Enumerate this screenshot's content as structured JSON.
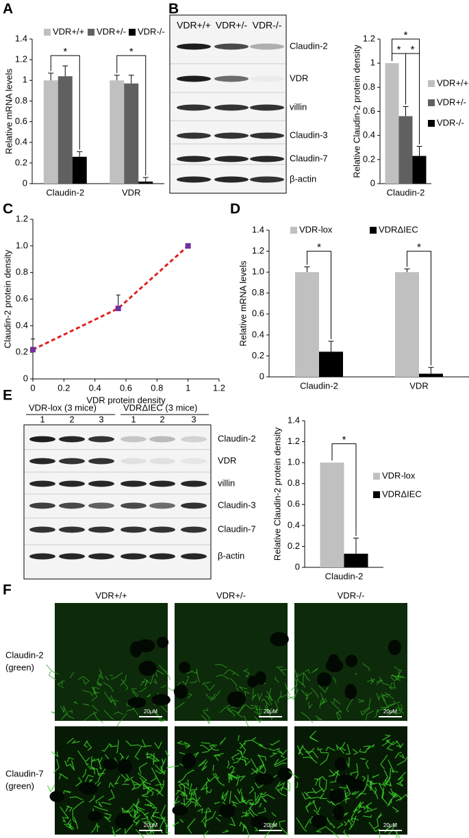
{
  "panels": [
    "A",
    "B",
    "C",
    "D",
    "E",
    "F"
  ],
  "chart_data": [
    {
      "type": "bar",
      "ylabel": "Relative mRNA levels",
      "categories": [
        "Claudin-2",
        "VDR"
      ],
      "series": [
        {
          "name": "VDR+/+",
          "color": "#c0c0c0",
          "values": [
            1.0,
            1.0
          ],
          "errors": [
            0.07,
            0.05
          ]
        },
        {
          "name": "VDR+/-",
          "color": "#606060",
          "values": [
            1.04,
            0.97
          ],
          "errors": [
            0.1,
            0.08
          ]
        },
        {
          "name": "VDR-/-",
          "color": "#000000",
          "values": [
            0.26,
            0.02
          ],
          "errors": [
            0.05,
            0.04
          ]
        }
      ],
      "ylim": [
        0,
        1.4
      ],
      "yticks": [
        0,
        0.2,
        0.4,
        0.6,
        0.8,
        1,
        1.2,
        1.4
      ],
      "legend": "top",
      "annotations": [
        "*",
        "*"
      ]
    },
    {
      "type": "bar",
      "ylabel": "Relative Claudin-2 protein density",
      "categories": [
        "Claudin-2"
      ],
      "series": [
        {
          "name": "VDR+/+",
          "color": "#c0c0c0",
          "values": [
            1.0
          ],
          "errors": [
            0
          ]
        },
        {
          "name": "VDR+/-",
          "color": "#606060",
          "values": [
            0.56
          ],
          "errors": [
            0.08
          ]
        },
        {
          "name": "VDR-/-",
          "color": "#000000",
          "values": [
            0.23
          ],
          "errors": [
            0.08
          ]
        }
      ],
      "ylim": [
        0,
        1.2
      ],
      "yticks": [
        0,
        0.2,
        0.4,
        0.6,
        0.8,
        1,
        1.2
      ],
      "legend": "right",
      "annotations": [
        "*",
        "*",
        "*"
      ]
    },
    {
      "type": "line",
      "xlabel": "VDR protein density",
      "ylabel": "Claudin-2 protein density",
      "x": [
        0,
        0.55,
        1.0
      ],
      "series": [
        {
          "color": "#e02020",
          "marker_color": "#7030a0",
          "values": [
            0.22,
            0.53,
            1.0
          ],
          "errors": [
            0.08,
            0.1,
            0
          ]
        }
      ],
      "xlim": [
        0,
        1.2
      ],
      "xticks": [
        0,
        0.2,
        0.4,
        0.6,
        0.8,
        1,
        1.2
      ],
      "ylim": [
        0,
        1.2
      ],
      "yticks": [
        0,
        0.2,
        0.4,
        0.6,
        0.8,
        {
          "value": 1,
          "label": "1.0"
        },
        1.2
      ]
    },
    {
      "type": "bar",
      "ylabel": "Relative mRNA levels",
      "categories": [
        "Claudin-2",
        "VDR"
      ],
      "series": [
        {
          "name": "VDR-lox",
          "color": "#c0c0c0",
          "values": [
            1.0,
            1.0
          ],
          "errors": [
            0.05,
            0.03
          ]
        },
        {
          "name": "VDRΔIEC",
          "color": "#000000",
          "values": [
            0.24,
            0.03
          ],
          "errors": [
            0.1,
            0.06
          ]
        }
      ],
      "ylim": [
        0,
        1.4
      ],
      "yticks": [
        0,
        0.2,
        0.4,
        0.6,
        0.8,
        {
          "value": 1,
          "label": "1.0"
        },
        1.2,
        1.4
      ],
      "legend": "top",
      "annotations": [
        "*",
        "*"
      ]
    },
    {
      "type": "bar",
      "ylabel": "Relative Claudin-2 protein density",
      "categories": [
        "Claudin-2"
      ],
      "series": [
        {
          "name": "VDR-lox",
          "color": "#c0c0c0",
          "values": [
            1.0
          ],
          "errors": [
            0
          ]
        },
        {
          "name": "VDRΔIEC",
          "color": "#000000",
          "values": [
            0.13
          ],
          "errors": [
            0.15
          ]
        }
      ],
      "ylim": [
        0,
        1.4
      ],
      "yticks": [
        0,
        0.2,
        0.4,
        0.6,
        0.8,
        {
          "value": 1,
          "label": "1.0"
        },
        1.2,
        1.4
      ],
      "legend": "right",
      "annotations": [
        "*"
      ]
    }
  ],
  "blots": [
    {
      "columns": [
        "VDR+/+",
        "VDR+/-",
        "VDR-/-"
      ],
      "rows": [
        "Claudin-2",
        "VDR",
        "villin",
        "Claudin-3",
        "Claudin-7",
        "β-actin"
      ]
    },
    {
      "groups": [
        "VDR-lox (3 mice)",
        "VDRΔIEC (3 mice)"
      ],
      "lanes": [
        "1",
        "2",
        "3",
        "1",
        "2",
        "3"
      ],
      "rows": [
        "Claudin-2",
        "VDR",
        "villin",
        "Claudin-3",
        "Claudin-7",
        "β-actin"
      ]
    }
  ],
  "micrographs": {
    "columns": [
      "VDR+/+",
      "VDR+/-",
      "VDR-/-"
    ],
    "rows": [
      [
        "Claudin-2",
        "(green)"
      ],
      [
        "Claudin-7",
        "(green)"
      ]
    ],
    "scale_bar": "20μM"
  }
}
